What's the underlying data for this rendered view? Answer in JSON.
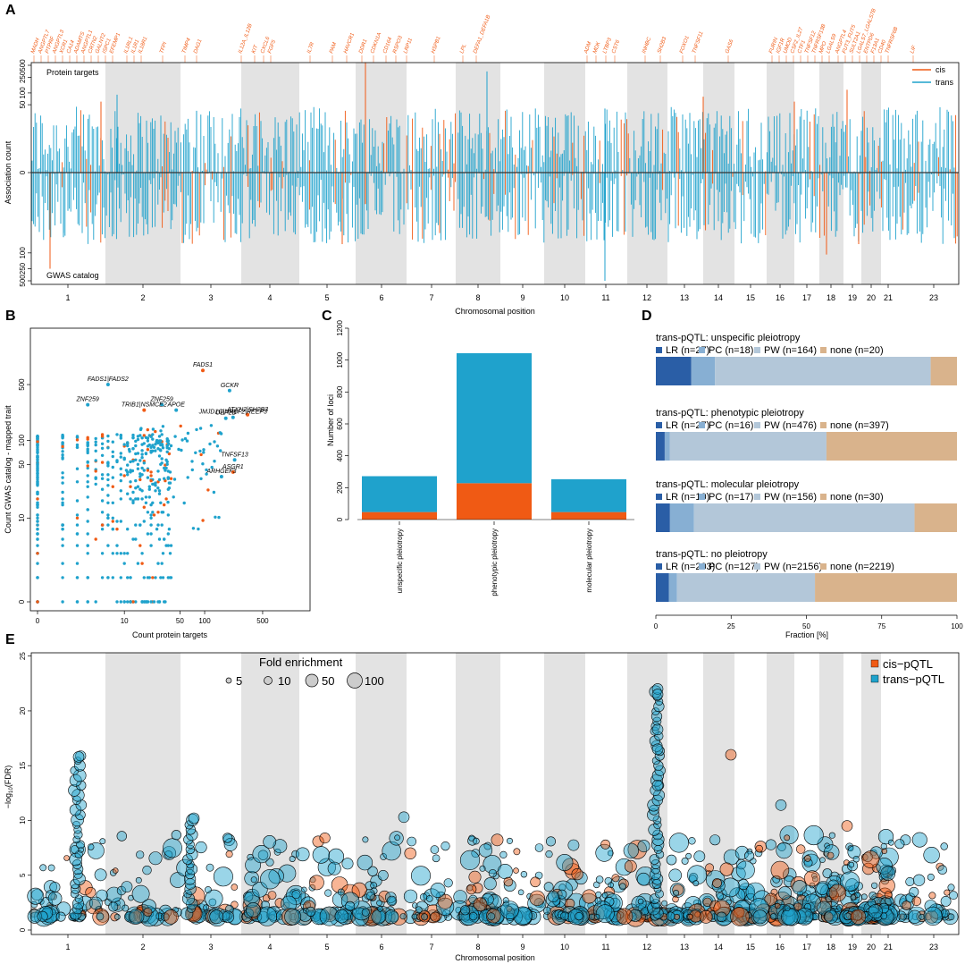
{
  "colors": {
    "cis": "#f05a14",
    "trans": "#1fa2cc",
    "band": "#e3e3e3",
    "LR": "#2a5ea6",
    "PC": "#87afd3",
    "PW": "#b3c7d9",
    "none": "#d9b38c"
  },
  "panels": {
    "A": "A",
    "B": "B",
    "C": "C",
    "D": "D",
    "E": "E"
  },
  "chromosomes": [
    "1",
    "2",
    "3",
    "4",
    "5",
    "6",
    "7",
    "8",
    "9",
    "10",
    "11",
    "12",
    "13",
    "14",
    "15",
    "16",
    "17",
    "18",
    "19",
    "20",
    "21",
    "23"
  ],
  "panelA": {
    "xlabel": "Chromosomal position",
    "ylabel": "Association count",
    "top_label": "Protein targets",
    "bottom_label": "GWAS catalog",
    "yticks_top": [
      "500",
      "250",
      "100",
      "50",
      "0"
    ],
    "yticks_bottom": [
      "100",
      "250",
      "500"
    ],
    "legend": [
      "cis",
      "trans"
    ],
    "gene_labels": [
      "MADH",
      "ANGPTL7",
      "PTPRF",
      "ANGPTL3",
      "XCR1",
      "CA14",
      "ADAMTS",
      "ANGPTL1",
      "CRTN2",
      "GALNT2",
      "ISPC1",
      "EFEMP1",
      "IL1RL1",
      "IL1R1",
      "IL18R1",
      "TFPI",
      "TIMP4",
      "DAG1",
      "IL12A_IL12B",
      "KIT",
      "CXCL6",
      "FGF5",
      "IL7R",
      "PAM",
      "HAVCR1",
      "DDR1",
      "CDKN1A",
      "CD164",
      "RSPO3",
      "LRP11",
      "HSPB1",
      "LPL",
      "DEFA1_DEFA1B",
      "ADM",
      "MDK",
      "LTBP3",
      "CST6",
      "INHBC",
      "SH2B3",
      "FOXO1",
      "TNFSF11",
      "GAS6",
      "FURIN",
      "IGF1R",
      "UMOD",
      "CSF2_IL27",
      "CTF1",
      "TNFSF12",
      "TNFRSF13B",
      "MPO",
      "LGALS9",
      "ANGPTL4",
      "FUT3_FUT5",
      "SULT2A1",
      "LGALS7_LGALS7B",
      "ENTPD6",
      "F13A1",
      "CD40",
      "TNFRSF6B",
      "LIF"
    ]
  },
  "panelB": {
    "xlabel": "Count protein targets",
    "ylabel": "Count GWAS catalog - mapped trait",
    "xticks": [
      "0",
      "10",
      "50",
      "100",
      "500"
    ],
    "yticks": [
      "0",
      "10",
      "50",
      "100",
      "500"
    ]
  },
  "panelC": {
    "ylabel": "Number of loci",
    "yticks": [
      "0",
      "200",
      "400",
      "600",
      "800",
      "1000",
      "1200"
    ]
  },
  "panelD": {
    "xlabel": "Fraction [%]",
    "xticks": [
      "0",
      "25",
      "50",
      "75",
      "100"
    ]
  },
  "panelE": {
    "xlabel": "Chromosomal position",
    "ylabel": "-log10(FDR)",
    "yticks": [
      "0",
      "5",
      "10",
      "15",
      "20",
      "25"
    ],
    "size_legend_title": "Fold enrichment",
    "size_legend": [
      "5",
      "10",
      "50",
      "100"
    ],
    "legend": [
      "cis−pQTL",
      "trans−pQTL"
    ]
  },
  "chart_data": [
    {
      "panel": "B",
      "type": "scatter",
      "annotations": [
        {
          "label": "FADS1",
          "x": 95,
          "y": 750,
          "series": "cis"
        },
        {
          "label": "FADS1|FADS2",
          "x": 6,
          "y": 500,
          "series": "trans"
        },
        {
          "label": "GCKR",
          "x": 200,
          "y": 420,
          "series": "trans"
        },
        {
          "label": "ZNF259",
          "x": 3,
          "y": 280,
          "series": "trans"
        },
        {
          "label": "ZNF259",
          "x": 30,
          "y": 280,
          "series": "trans"
        },
        {
          "label": "TRIB1|NSMCE2",
          "x": 18,
          "y": 240,
          "series": "cis"
        },
        {
          "label": "APOE",
          "x": 45,
          "y": 240,
          "series": "trans"
        },
        {
          "label": "ATXN2|SH2B3",
          "x": 330,
          "y": 210,
          "series": "cis"
        },
        {
          "label": "OBP2B",
          "x": 180,
          "y": 190,
          "series": "trans"
        },
        {
          "label": "JMJD1C|NRBF2|REEP3",
          "x": 220,
          "y": 195,
          "series": "trans"
        },
        {
          "label": "TNFSF13",
          "x": 230,
          "y": 57,
          "series": "trans"
        },
        {
          "label": "ASGR1",
          "x": 220,
          "y": 40,
          "series": "cis"
        },
        {
          "label": "ARHGEF3",
          "x": 160,
          "y": 35,
          "series": "trans"
        }
      ]
    },
    {
      "panel": "C",
      "type": "bar",
      "categories": [
        "unspecific pleiotropy",
        "phenotypic pleiotropy",
        "molecular pleiotropy"
      ],
      "series": [
        {
          "name": "cis",
          "values": [
            47,
            228,
            47
          ]
        },
        {
          "name": "trans",
          "values": [
            225,
            815,
            206
          ]
        }
      ],
      "ylim": [
        0,
        1200
      ]
    },
    {
      "panel": "D",
      "type": "bar",
      "groups": [
        {
          "title": "trans-pQTL: unspecific pleiotropy",
          "segments": [
            {
              "label": "LR (n=27)",
              "n": 27
            },
            {
              "label": "PC (n=18)",
              "n": 18
            },
            {
              "label": "PW (n=164)",
              "n": 164
            },
            {
              "label": "none (n=20)",
              "n": 20
            }
          ]
        },
        {
          "title": "trans-pQTL: phenotypic pleiotropy",
          "segments": [
            {
              "label": "LR (n=27)",
              "n": 27
            },
            {
              "label": "PC (n=16)",
              "n": 16
            },
            {
              "label": "PW (n=476)",
              "n": 476
            },
            {
              "label": "none (n=397)",
              "n": 397
            }
          ]
        },
        {
          "title": "trans-pQTL: molecular pleiotropy",
          "segments": [
            {
              "label": "LR (n=10)",
              "n": 10
            },
            {
              "label": "PC (n=17)",
              "n": 17
            },
            {
              "label": "PW (n=156)",
              "n": 156
            },
            {
              "label": "none (n=30)",
              "n": 30
            }
          ]
        },
        {
          "title": "trans-pQTL: no pleiotropy",
          "segments": [
            {
              "label": "LR (n=203)",
              "n": 203
            },
            {
              "label": "PC (n=127)",
              "n": 127
            },
            {
              "label": "PW (n=2156)",
              "n": 2156
            },
            {
              "label": "none (n=2219)",
              "n": 2219
            }
          ]
        }
      ],
      "xlim": [
        0,
        100
      ]
    },
    {
      "panel": "E",
      "type": "scatter",
      "ylim": [
        0,
        25
      ],
      "highlights": [
        {
          "chromosome": "12",
          "y": 22.0,
          "series": "trans"
        },
        {
          "chromosome": "12",
          "y": 21.5,
          "series": "trans"
        },
        {
          "chromosome": "12",
          "y": 18.3,
          "series": "trans"
        },
        {
          "chromosome": "12",
          "y": 16.5,
          "series": "trans"
        },
        {
          "chromosome": "1",
          "y": 15.8,
          "series": "trans"
        },
        {
          "chromosome": "14",
          "y": 16.0,
          "series": "cis"
        },
        {
          "chromosome": "12",
          "y": 13.2,
          "series": "trans"
        },
        {
          "chromosome": "17",
          "y": 11.4,
          "series": "trans"
        },
        {
          "chromosome": "6",
          "y": 10.3,
          "series": "trans"
        },
        {
          "chromosome": "3",
          "y": 10.2,
          "series": "trans"
        },
        {
          "chromosome": "19",
          "y": 9.5,
          "series": "cis"
        }
      ]
    }
  ]
}
